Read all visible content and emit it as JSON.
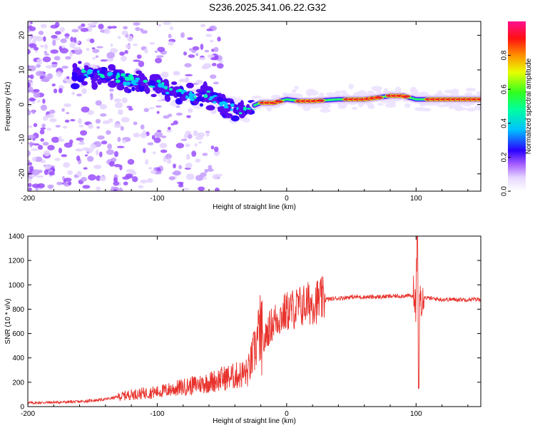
{
  "title": "S236.2025.341.06.22.G32",
  "chart_data": [
    {
      "type": "heatmap",
      "xlabel": "Height of straight line (km)",
      "ylabel": "Frequency (Hz)",
      "xlim": [
        -200,
        150
      ],
      "ylim": [
        -25,
        24
      ],
      "xticks": [
        -200,
        -100,
        0,
        100
      ],
      "yticks": [
        -20,
        -10,
        0,
        10,
        20
      ],
      "colorbar": {
        "label": "Normalized spectral amplitude",
        "range": [
          0,
          1
        ],
        "ticks": [
          "0.0",
          "0.2",
          "0.4",
          "0.6",
          "0.8"
        ]
      },
      "ridge": {
        "x": [
          -160,
          -150,
          -140,
          -130,
          -120,
          -110,
          -100,
          -90,
          -80,
          -70,
          -60,
          -50,
          -40,
          -30,
          -20,
          -10,
          0,
          10,
          20,
          40,
          60,
          80,
          90,
          100,
          120,
          150
        ],
        "frequency": [
          9,
          9,
          8,
          8,
          7,
          6,
          6,
          4,
          3,
          2,
          3,
          0,
          -2,
          -1,
          0.5,
          0.5,
          1.5,
          1,
          1,
          1.5,
          1.5,
          2.5,
          2.5,
          1.5,
          1.5,
          1.5
        ]
      }
    },
    {
      "type": "line",
      "xlabel": "Height of straight line (km)",
      "ylabel": "SNR (10 * v/v)",
      "xlim": [
        -200,
        150
      ],
      "ylim": [
        0,
        1400
      ],
      "xticks": [
        -200,
        -100,
        0,
        100
      ],
      "yticks": [
        0,
        200,
        400,
        600,
        800,
        1000,
        1200,
        1400
      ],
      "color": "#e8322c",
      "series": [
        {
          "name": "SNR",
          "x": [
            -200,
            -180,
            -160,
            -140,
            -130,
            -120,
            -110,
            -100,
            -90,
            -80,
            -70,
            -60,
            -50,
            -40,
            -30,
            -25,
            -22,
            -20,
            -18,
            -15,
            -10,
            -5,
            0,
            5,
            10,
            15,
            20,
            25,
            30,
            40,
            50,
            60,
            70,
            80,
            90,
            95,
            100,
            101,
            102,
            103,
            105,
            110,
            120,
            130,
            140,
            150
          ],
          "values": [
            30,
            35,
            40,
            60,
            80,
            100,
            110,
            120,
            140,
            160,
            180,
            200,
            230,
            250,
            280,
            450,
            580,
            620,
            500,
            620,
            700,
            740,
            780,
            800,
            820,
            840,
            860,
            870,
            880,
            890,
            900,
            900,
            900,
            905,
            910,
            910,
            900,
            1400,
            150,
            900,
            900,
            890,
            880,
            880,
            880,
            880
          ]
        }
      ]
    }
  ]
}
